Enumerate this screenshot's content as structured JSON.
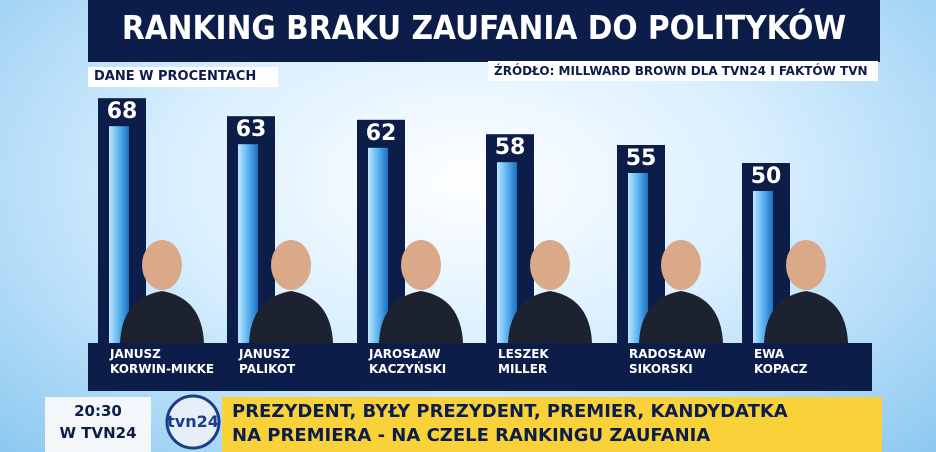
{
  "chart_data": {
    "type": "bar",
    "title": "RANKING BRAKU ZAUFANIA DO POLITYKÓW",
    "subtitle": "DANE W PROCENTACH",
    "source": "ŹRÓDŁO: MILLWARD BROWN DLA TVN24 I FAKTÓW TVN",
    "categories": [
      "JANUSZ\nKORWIN-MIKKE",
      "JANUSZ\nPALIKOT",
      "JAROSŁAW\nKACZYŃSKI",
      "LESZEK\nMILLER",
      "RADOSŁAW\nSIKORSKI",
      "EWA\nKOPACZ"
    ],
    "values": [
      68,
      63,
      62,
      58,
      55,
      50
    ],
    "color": "#3aa0e8"
  },
  "clock": {
    "time": "20:30",
    "channel": "W TVN24"
  },
  "logo": "tvn24",
  "ticker": "PREZYDENT, BYŁY PREZYDENT, PREMIER, KANDYDATKA\nNA PREMIERA - NA CZELE RANKINGU ZAUFANIA"
}
